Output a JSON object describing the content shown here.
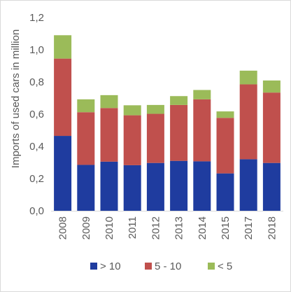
{
  "chart_data": {
    "type": "bar",
    "stacked": true,
    "categories": [
      "2008",
      "2009",
      "2010",
      "2011",
      "2012",
      "2013",
      "2014",
      "2015",
      "2017",
      "2018"
    ],
    "series": [
      {
        "name": "> 10",
        "color": "#1f3c9f",
        "values": [
          0.465,
          0.285,
          0.305,
          0.283,
          0.297,
          0.31,
          0.307,
          0.232,
          0.32,
          0.297
        ]
      },
      {
        "name": "5 - 10",
        "color": "#c0504d",
        "values": [
          0.48,
          0.327,
          0.333,
          0.31,
          0.305,
          0.347,
          0.385,
          0.345,
          0.465,
          0.437
        ]
      },
      {
        "name": "< 5",
        "color": "#9bbb59",
        "values": [
          0.145,
          0.08,
          0.08,
          0.062,
          0.055,
          0.055,
          0.058,
          0.04,
          0.085,
          0.075
        ]
      }
    ],
    "title": "",
    "xlabel": "",
    "ylabel": "Imports of used cars in million",
    "ylim": [
      0,
      1.2
    ],
    "yticks": [
      "0,0",
      "0,2",
      "0,4",
      "0,6",
      "0,8",
      "1,0",
      "1,2"
    ],
    "grid": false,
    "legend_position": "bottom"
  }
}
